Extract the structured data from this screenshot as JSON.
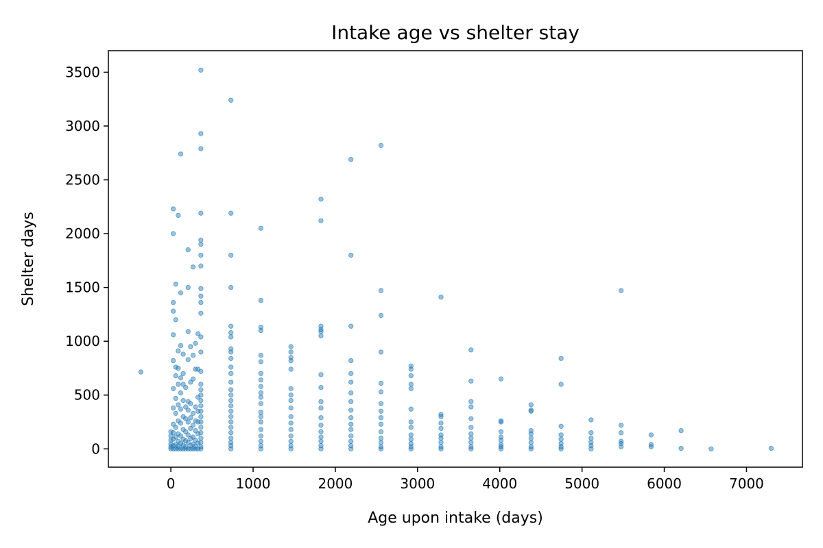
{
  "chart_data": {
    "type": "scatter",
    "title": "Intake age vs shelter stay",
    "xlabel": "Age upon intake (days)",
    "ylabel": "Shelter days",
    "xlim": [
      -760,
      7680
    ],
    "ylim": [
      -170,
      3700
    ],
    "xticks": [
      0,
      1000,
      2000,
      3000,
      4000,
      5000,
      6000,
      7000
    ],
    "yticks": [
      0,
      500,
      1000,
      1500,
      2000,
      2500,
      3000,
      3500
    ],
    "grid": false,
    "legend": "none",
    "marker_color": "#1f77b4",
    "series": [
      {
        "points": [
          [
            -365,
            715
          ],
          [
            0,
            0
          ],
          [
            0,
            20
          ],
          [
            0,
            45
          ],
          [
            0,
            80
          ],
          [
            0,
            120
          ],
          [
            0,
            160
          ],
          [
            30,
            0
          ],
          [
            30,
            30
          ],
          [
            30,
            90
          ],
          [
            30,
            150
          ],
          [
            30,
            230
          ],
          [
            30,
            380
          ],
          [
            30,
            560
          ],
          [
            30,
            820
          ],
          [
            30,
            1060
          ],
          [
            30,
            1280
          ],
          [
            30,
            1360
          ],
          [
            30,
            2000
          ],
          [
            30,
            2230
          ],
          [
            60,
            0
          ],
          [
            60,
            40
          ],
          [
            60,
            110
          ],
          [
            60,
            200
          ],
          [
            60,
            330
          ],
          [
            60,
            470
          ],
          [
            60,
            680
          ],
          [
            60,
            760
          ],
          [
            60,
            1200
          ],
          [
            60,
            1530
          ],
          [
            90,
            0
          ],
          [
            90,
            25
          ],
          [
            90,
            70
          ],
          [
            90,
            140
          ],
          [
            90,
            260
          ],
          [
            90,
            410
          ],
          [
            90,
            600
          ],
          [
            90,
            750
          ],
          [
            90,
            910
          ],
          [
            90,
            2170
          ],
          [
            120,
            0
          ],
          [
            120,
            50
          ],
          [
            120,
            120
          ],
          [
            120,
            240
          ],
          [
            120,
            370
          ],
          [
            120,
            520
          ],
          [
            120,
            660
          ],
          [
            120,
            960
          ],
          [
            120,
            1450
          ],
          [
            120,
            2740
          ],
          [
            150,
            0
          ],
          [
            150,
            35
          ],
          [
            150,
            90
          ],
          [
            150,
            180
          ],
          [
            150,
            300
          ],
          [
            150,
            450
          ],
          [
            150,
            600
          ],
          [
            150,
            700
          ],
          [
            150,
            880
          ],
          [
            180,
            0
          ],
          [
            180,
            20
          ],
          [
            180,
            75
          ],
          [
            180,
            160
          ],
          [
            180,
            280
          ],
          [
            180,
            390
          ],
          [
            180,
            570
          ],
          [
            210,
            0
          ],
          [
            210,
            60
          ],
          [
            210,
            130
          ],
          [
            210,
            250
          ],
          [
            210,
            360
          ],
          [
            210,
            440
          ],
          [
            210,
            830
          ],
          [
            210,
            1090
          ],
          [
            210,
            1500
          ],
          [
            210,
            1850
          ],
          [
            240,
            0
          ],
          [
            240,
            30
          ],
          [
            240,
            95
          ],
          [
            240,
            190
          ],
          [
            240,
            290
          ],
          [
            240,
            420
          ],
          [
            240,
            620
          ],
          [
            240,
            950
          ],
          [
            270,
            0
          ],
          [
            270,
            45
          ],
          [
            270,
            110
          ],
          [
            270,
            220
          ],
          [
            270,
            330
          ],
          [
            270,
            650
          ],
          [
            270,
            870
          ],
          [
            270,
            1690
          ],
          [
            300,
            0
          ],
          [
            300,
            25
          ],
          [
            300,
            80
          ],
          [
            300,
            170
          ],
          [
            300,
            260
          ],
          [
            300,
            390
          ],
          [
            300,
            740
          ],
          [
            300,
            980
          ],
          [
            330,
            0
          ],
          [
            330,
            55
          ],
          [
            330,
            140
          ],
          [
            330,
            250
          ],
          [
            330,
            350
          ],
          [
            330,
            480
          ],
          [
            330,
            740
          ],
          [
            330,
            1070
          ],
          [
            365,
            0
          ],
          [
            365,
            20
          ],
          [
            365,
            60
          ],
          [
            365,
            100
          ],
          [
            365,
            150
          ],
          [
            365,
            200
          ],
          [
            365,
            250
          ],
          [
            365,
            300
          ],
          [
            365,
            350
          ],
          [
            365,
            400
          ],
          [
            365,
            450
          ],
          [
            365,
            500
          ],
          [
            365,
            550
          ],
          [
            365,
            600
          ],
          [
            365,
            720
          ],
          [
            365,
            900
          ],
          [
            365,
            1040
          ],
          [
            365,
            1260
          ],
          [
            365,
            1360
          ],
          [
            365,
            1420
          ],
          [
            365,
            1490
          ],
          [
            365,
            1700
          ],
          [
            365,
            1800
          ],
          [
            365,
            1900
          ],
          [
            365,
            1940
          ],
          [
            365,
            2190
          ],
          [
            365,
            2790
          ],
          [
            365,
            2930
          ],
          [
            365,
            3520
          ],
          [
            730,
            0
          ],
          [
            730,
            30
          ],
          [
            730,
            60
          ],
          [
            730,
            100
          ],
          [
            730,
            150
          ],
          [
            730,
            200
          ],
          [
            730,
            250
          ],
          [
            730,
            300
          ],
          [
            730,
            350
          ],
          [
            730,
            400
          ],
          [
            730,
            450
          ],
          [
            730,
            500
          ],
          [
            730,
            550
          ],
          [
            730,
            620
          ],
          [
            730,
            700
          ],
          [
            730,
            760
          ],
          [
            730,
            840
          ],
          [
            730,
            900
          ],
          [
            730,
            930
          ],
          [
            730,
            1040
          ],
          [
            730,
            1080
          ],
          [
            730,
            1140
          ],
          [
            730,
            1500
          ],
          [
            730,
            1800
          ],
          [
            730,
            2190
          ],
          [
            730,
            3240
          ],
          [
            1095,
            0
          ],
          [
            1095,
            30
          ],
          [
            1095,
            70
          ],
          [
            1095,
            120
          ],
          [
            1095,
            180
          ],
          [
            1095,
            250
          ],
          [
            1095,
            300
          ],
          [
            1095,
            340
          ],
          [
            1095,
            420
          ],
          [
            1095,
            480
          ],
          [
            1095,
            520
          ],
          [
            1095,
            580
          ],
          [
            1095,
            640
          ],
          [
            1095,
            700
          ],
          [
            1095,
            810
          ],
          [
            1095,
            870
          ],
          [
            1095,
            1100
          ],
          [
            1095,
            1130
          ],
          [
            1095,
            1380
          ],
          [
            1095,
            2050
          ],
          [
            1460,
            0
          ],
          [
            1460,
            30
          ],
          [
            1460,
            70
          ],
          [
            1460,
            120
          ],
          [
            1460,
            180
          ],
          [
            1460,
            240
          ],
          [
            1460,
            300
          ],
          [
            1460,
            380
          ],
          [
            1460,
            450
          ],
          [
            1460,
            500
          ],
          [
            1460,
            560
          ],
          [
            1460,
            740
          ],
          [
            1460,
            820
          ],
          [
            1460,
            850
          ],
          [
            1460,
            900
          ],
          [
            1460,
            950
          ],
          [
            1825,
            0
          ],
          [
            1825,
            30
          ],
          [
            1825,
            70
          ],
          [
            1825,
            110
          ],
          [
            1825,
            160
          ],
          [
            1825,
            220
          ],
          [
            1825,
            290
          ],
          [
            1825,
            380
          ],
          [
            1825,
            440
          ],
          [
            1825,
            570
          ],
          [
            1825,
            690
          ],
          [
            1825,
            1050
          ],
          [
            1825,
            1090
          ],
          [
            1825,
            1110
          ],
          [
            1825,
            1140
          ],
          [
            1825,
            2120
          ],
          [
            1825,
            2320
          ],
          [
            2190,
            0
          ],
          [
            2190,
            30
          ],
          [
            2190,
            70
          ],
          [
            2190,
            120
          ],
          [
            2190,
            180
          ],
          [
            2190,
            230
          ],
          [
            2190,
            290
          ],
          [
            2190,
            360
          ],
          [
            2190,
            440
          ],
          [
            2190,
            520
          ],
          [
            2190,
            620
          ],
          [
            2190,
            700
          ],
          [
            2190,
            820
          ],
          [
            2190,
            1140
          ],
          [
            2190,
            1800
          ],
          [
            2190,
            2690
          ],
          [
            2555,
            0
          ],
          [
            2555,
            20
          ],
          [
            2555,
            60
          ],
          [
            2555,
            100
          ],
          [
            2555,
            160
          ],
          [
            2555,
            230
          ],
          [
            2555,
            290
          ],
          [
            2555,
            350
          ],
          [
            2555,
            420
          ],
          [
            2555,
            530
          ],
          [
            2555,
            610
          ],
          [
            2555,
            900
          ],
          [
            2555,
            1240
          ],
          [
            2555,
            1470
          ],
          [
            2555,
            2820
          ],
          [
            2920,
            0
          ],
          [
            2920,
            20
          ],
          [
            2920,
            50
          ],
          [
            2920,
            90
          ],
          [
            2920,
            130
          ],
          [
            2920,
            200
          ],
          [
            2920,
            250
          ],
          [
            2920,
            370
          ],
          [
            2920,
            560
          ],
          [
            2920,
            600
          ],
          [
            2920,
            680
          ],
          [
            2920,
            740
          ],
          [
            2920,
            770
          ],
          [
            3285,
            0
          ],
          [
            3285,
            20
          ],
          [
            3285,
            60
          ],
          [
            3285,
            100
          ],
          [
            3285,
            130
          ],
          [
            3285,
            190
          ],
          [
            3285,
            240
          ],
          [
            3285,
            300
          ],
          [
            3285,
            320
          ],
          [
            3285,
            1410
          ],
          [
            3650,
            0
          ],
          [
            3650,
            20
          ],
          [
            3650,
            60
          ],
          [
            3650,
            100
          ],
          [
            3650,
            140
          ],
          [
            3650,
            200
          ],
          [
            3650,
            280
          ],
          [
            3650,
            390
          ],
          [
            3650,
            440
          ],
          [
            3650,
            630
          ],
          [
            3650,
            920
          ],
          [
            4015,
            0
          ],
          [
            4015,
            20
          ],
          [
            4015,
            40
          ],
          [
            4015,
            80
          ],
          [
            4015,
            110
          ],
          [
            4015,
            160
          ],
          [
            4015,
            250
          ],
          [
            4015,
            260
          ],
          [
            4015,
            650
          ],
          [
            4380,
            0
          ],
          [
            4380,
            20
          ],
          [
            4380,
            60
          ],
          [
            4380,
            100
          ],
          [
            4380,
            140
          ],
          [
            4380,
            170
          ],
          [
            4380,
            350
          ],
          [
            4380,
            360
          ],
          [
            4380,
            410
          ],
          [
            4745,
            0
          ],
          [
            4745,
            20
          ],
          [
            4745,
            50
          ],
          [
            4745,
            90
          ],
          [
            4745,
            130
          ],
          [
            4745,
            210
          ],
          [
            4745,
            600
          ],
          [
            4745,
            840
          ],
          [
            5110,
            0
          ],
          [
            5110,
            30
          ],
          [
            5110,
            60
          ],
          [
            5110,
            100
          ],
          [
            5110,
            150
          ],
          [
            5110,
            270
          ],
          [
            5475,
            20
          ],
          [
            5475,
            50
          ],
          [
            5475,
            70
          ],
          [
            5475,
            150
          ],
          [
            5475,
            220
          ],
          [
            5475,
            1470
          ],
          [
            5840,
            20
          ],
          [
            5840,
            40
          ],
          [
            5840,
            130
          ],
          [
            6205,
            5
          ],
          [
            6205,
            170
          ],
          [
            6570,
            0
          ],
          [
            7300,
            5
          ]
        ]
      }
    ]
  }
}
